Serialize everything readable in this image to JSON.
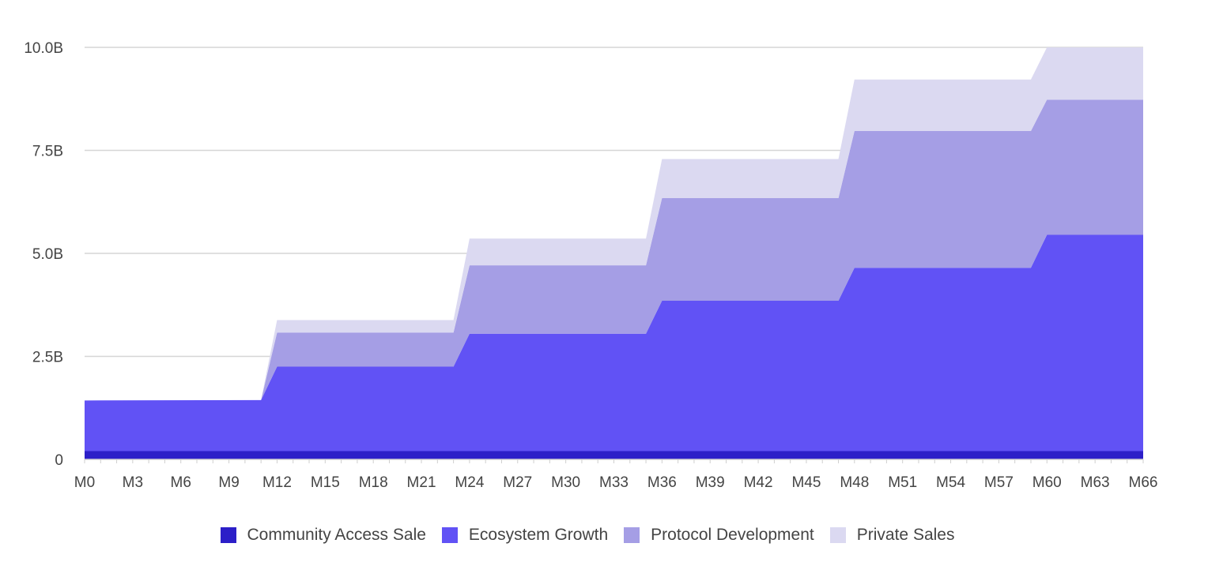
{
  "chart_data": {
    "type": "area",
    "stacked": true,
    "x": [
      0,
      11,
      12,
      23,
      24,
      35,
      36,
      47,
      48,
      59,
      60,
      66
    ],
    "x_ticks": [
      "M0",
      "M3",
      "M6",
      "M9",
      "M12",
      "M15",
      "M18",
      "M21",
      "M24",
      "M27",
      "M30",
      "M33",
      "M36",
      "M39",
      "M42",
      "M45",
      "M48",
      "M51",
      "M54",
      "M57",
      "M60",
      "M63",
      "M66"
    ],
    "y_ticks": [
      {
        "value": 0,
        "label": "0"
      },
      {
        "value": 2.5,
        "label": "2.5B"
      },
      {
        "value": 5.0,
        "label": "5.0B"
      },
      {
        "value": 7.5,
        "label": "7.5B"
      },
      {
        "value": 10.0,
        "label": "10.0B"
      }
    ],
    "ylim": [
      0,
      10.0
    ],
    "xlim": [
      0,
      66
    ],
    "y_unit": "B",
    "grid": true,
    "legend_position": "bottom-center",
    "series": [
      {
        "name": "Community Access Sale",
        "color": "#2c1fc8",
        "values": [
          0.2,
          0.2,
          0.2,
          0.2,
          0.2,
          0.2,
          0.2,
          0.2,
          0.2,
          0.2,
          0.2,
          0.2
        ]
      },
      {
        "name": "Ecosystem Growth",
        "color": "#6152f5",
        "values": [
          1.23,
          1.24,
          2.05,
          2.05,
          2.85,
          2.85,
          3.65,
          3.65,
          4.45,
          4.45,
          5.25,
          5.25
        ]
      },
      {
        "name": "Protocol Development",
        "color": "#a59ee5",
        "values": [
          0,
          0,
          0.83,
          0.83,
          1.66,
          1.66,
          2.49,
          2.49,
          3.32,
          3.32,
          3.28,
          3.28
        ]
      },
      {
        "name": "Private Sales",
        "color": "#dbd9f1",
        "values": [
          0,
          0,
          0.3,
          0.3,
          0.65,
          0.65,
          0.95,
          0.95,
          1.25,
          1.25,
          1.27,
          1.27
        ]
      }
    ]
  }
}
